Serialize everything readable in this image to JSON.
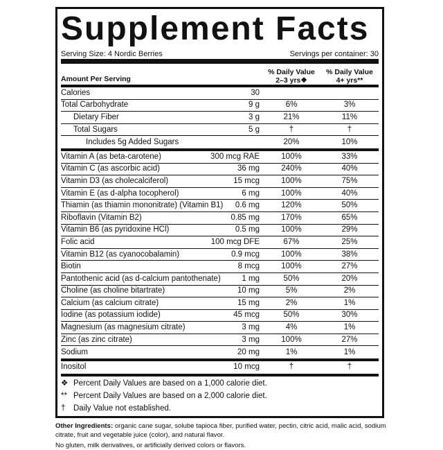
{
  "title": "Supplement Facts",
  "serving_size": "Serving Size: 4 Nordic Berries",
  "servings_per_container": "Servings per container: 30",
  "header": {
    "amount": "Amount Per Serving",
    "col1_line1": "% Daily Value",
    "col1_line2": "2–3 yrs❖",
    "col2_line1": "% Daily Value",
    "col2_line2": "4+ yrs**"
  },
  "group1": [
    {
      "name": "Calories",
      "amount": "30",
      "dv1": "",
      "dv2": "",
      "indent": 0
    },
    {
      "name": "Total Carbohydrate",
      "amount": "9 g",
      "dv1": "6%",
      "dv2": "3%",
      "indent": 0
    },
    {
      "name": "Dietary Fiber",
      "amount": "3 g",
      "dv1": "21%",
      "dv2": "11%",
      "indent": 1
    },
    {
      "name": "Total Sugars",
      "amount": "5 g",
      "dv1": "†",
      "dv2": "†",
      "indent": 1
    },
    {
      "name": "Includes 5g Added Sugars",
      "amount": "",
      "dv1": "20%",
      "dv2": "10%",
      "indent": 2
    }
  ],
  "group2": [
    {
      "name": "Vitamin A (as beta-carotene)",
      "amount": "300 mcg RAE",
      "dv1": "100%",
      "dv2": "33%"
    },
    {
      "name": "Vitamin C (as ascorbic acid)",
      "amount": "36 mg",
      "dv1": "240%",
      "dv2": "40%"
    },
    {
      "name": "Vitamin D3 (as cholecalciferol)",
      "amount": "15 mcg",
      "dv1": "100%",
      "dv2": "75%"
    },
    {
      "name": "Vitamin E (as d-alpha tocopherol)",
      "amount": "6 mg",
      "dv1": "100%",
      "dv2": "40%"
    },
    {
      "name": "Thiamin (as thiamin mononitrate) (Vitamin B1)",
      "amount": "0.6 mg",
      "dv1": "120%",
      "dv2": "50%"
    },
    {
      "name": "Riboflavin (Vitamin B2)",
      "amount": "0.85 mg",
      "dv1": "170%",
      "dv2": "65%"
    },
    {
      "name": "Vitamin B6 (as pyridoxine HCl)",
      "amount": "0.5 mg",
      "dv1": "100%",
      "dv2": "29%"
    },
    {
      "name": "Folic acid",
      "amount": "100 mcg DFE",
      "dv1": "67%",
      "dv2": "25%"
    },
    {
      "name": "Vitamin B12 (as cyanocobalamin)",
      "amount": "0.9 mcg",
      "dv1": "100%",
      "dv2": "38%"
    },
    {
      "name": "Biotin",
      "amount": "8 mcg",
      "dv1": "100%",
      "dv2": "27%"
    },
    {
      "name": "Pantothenic acid (as d-calcium pantothenate)",
      "amount": "1 mg",
      "dv1": "50%",
      "dv2": "20%"
    },
    {
      "name": "Choline (as choline bitartrate)",
      "amount": "10 mg",
      "dv1": "5%",
      "dv2": "2%"
    },
    {
      "name": "Calcium (as calcium citrate)",
      "amount": "15 mg",
      "dv1": "2%",
      "dv2": "1%"
    },
    {
      "name": "Iodine (as potassium iodide)",
      "amount": "45 mcg",
      "dv1": "50%",
      "dv2": "30%"
    },
    {
      "name": "Magnesium (as magnesium citrate)",
      "amount": "3 mg",
      "dv1": "4%",
      "dv2": "1%"
    },
    {
      "name": "Zinc (as zinc citrate)",
      "amount": "3 mg",
      "dv1": "100%",
      "dv2": "27%"
    },
    {
      "name": "Sodium",
      "amount": "20 mg",
      "dv1": "1%",
      "dv2": "1%"
    }
  ],
  "group3": [
    {
      "name": "Inositol",
      "amount": "10 mcg",
      "dv1": "†",
      "dv2": "†"
    }
  ],
  "footnotes": [
    {
      "symbol": "❖",
      "text": "Percent Daily Values are based on a 1,000 calorie diet."
    },
    {
      "symbol": "**",
      "text": "Percent Daily Values are based on a 2,000 calorie diet."
    },
    {
      "symbol": "†",
      "text": "Daily Value not established."
    }
  ],
  "other_label": "Other Ingredients:",
  "other_text": " organic cane sugar, solube tapioca fiber, purified water, pectin, citric acid, malic acid, sodium citrate, fruit and vegetable juice (color), and natural flavor.",
  "disclaimer": "No gluten, milk derivatives, or artificially derived colors or flavors."
}
